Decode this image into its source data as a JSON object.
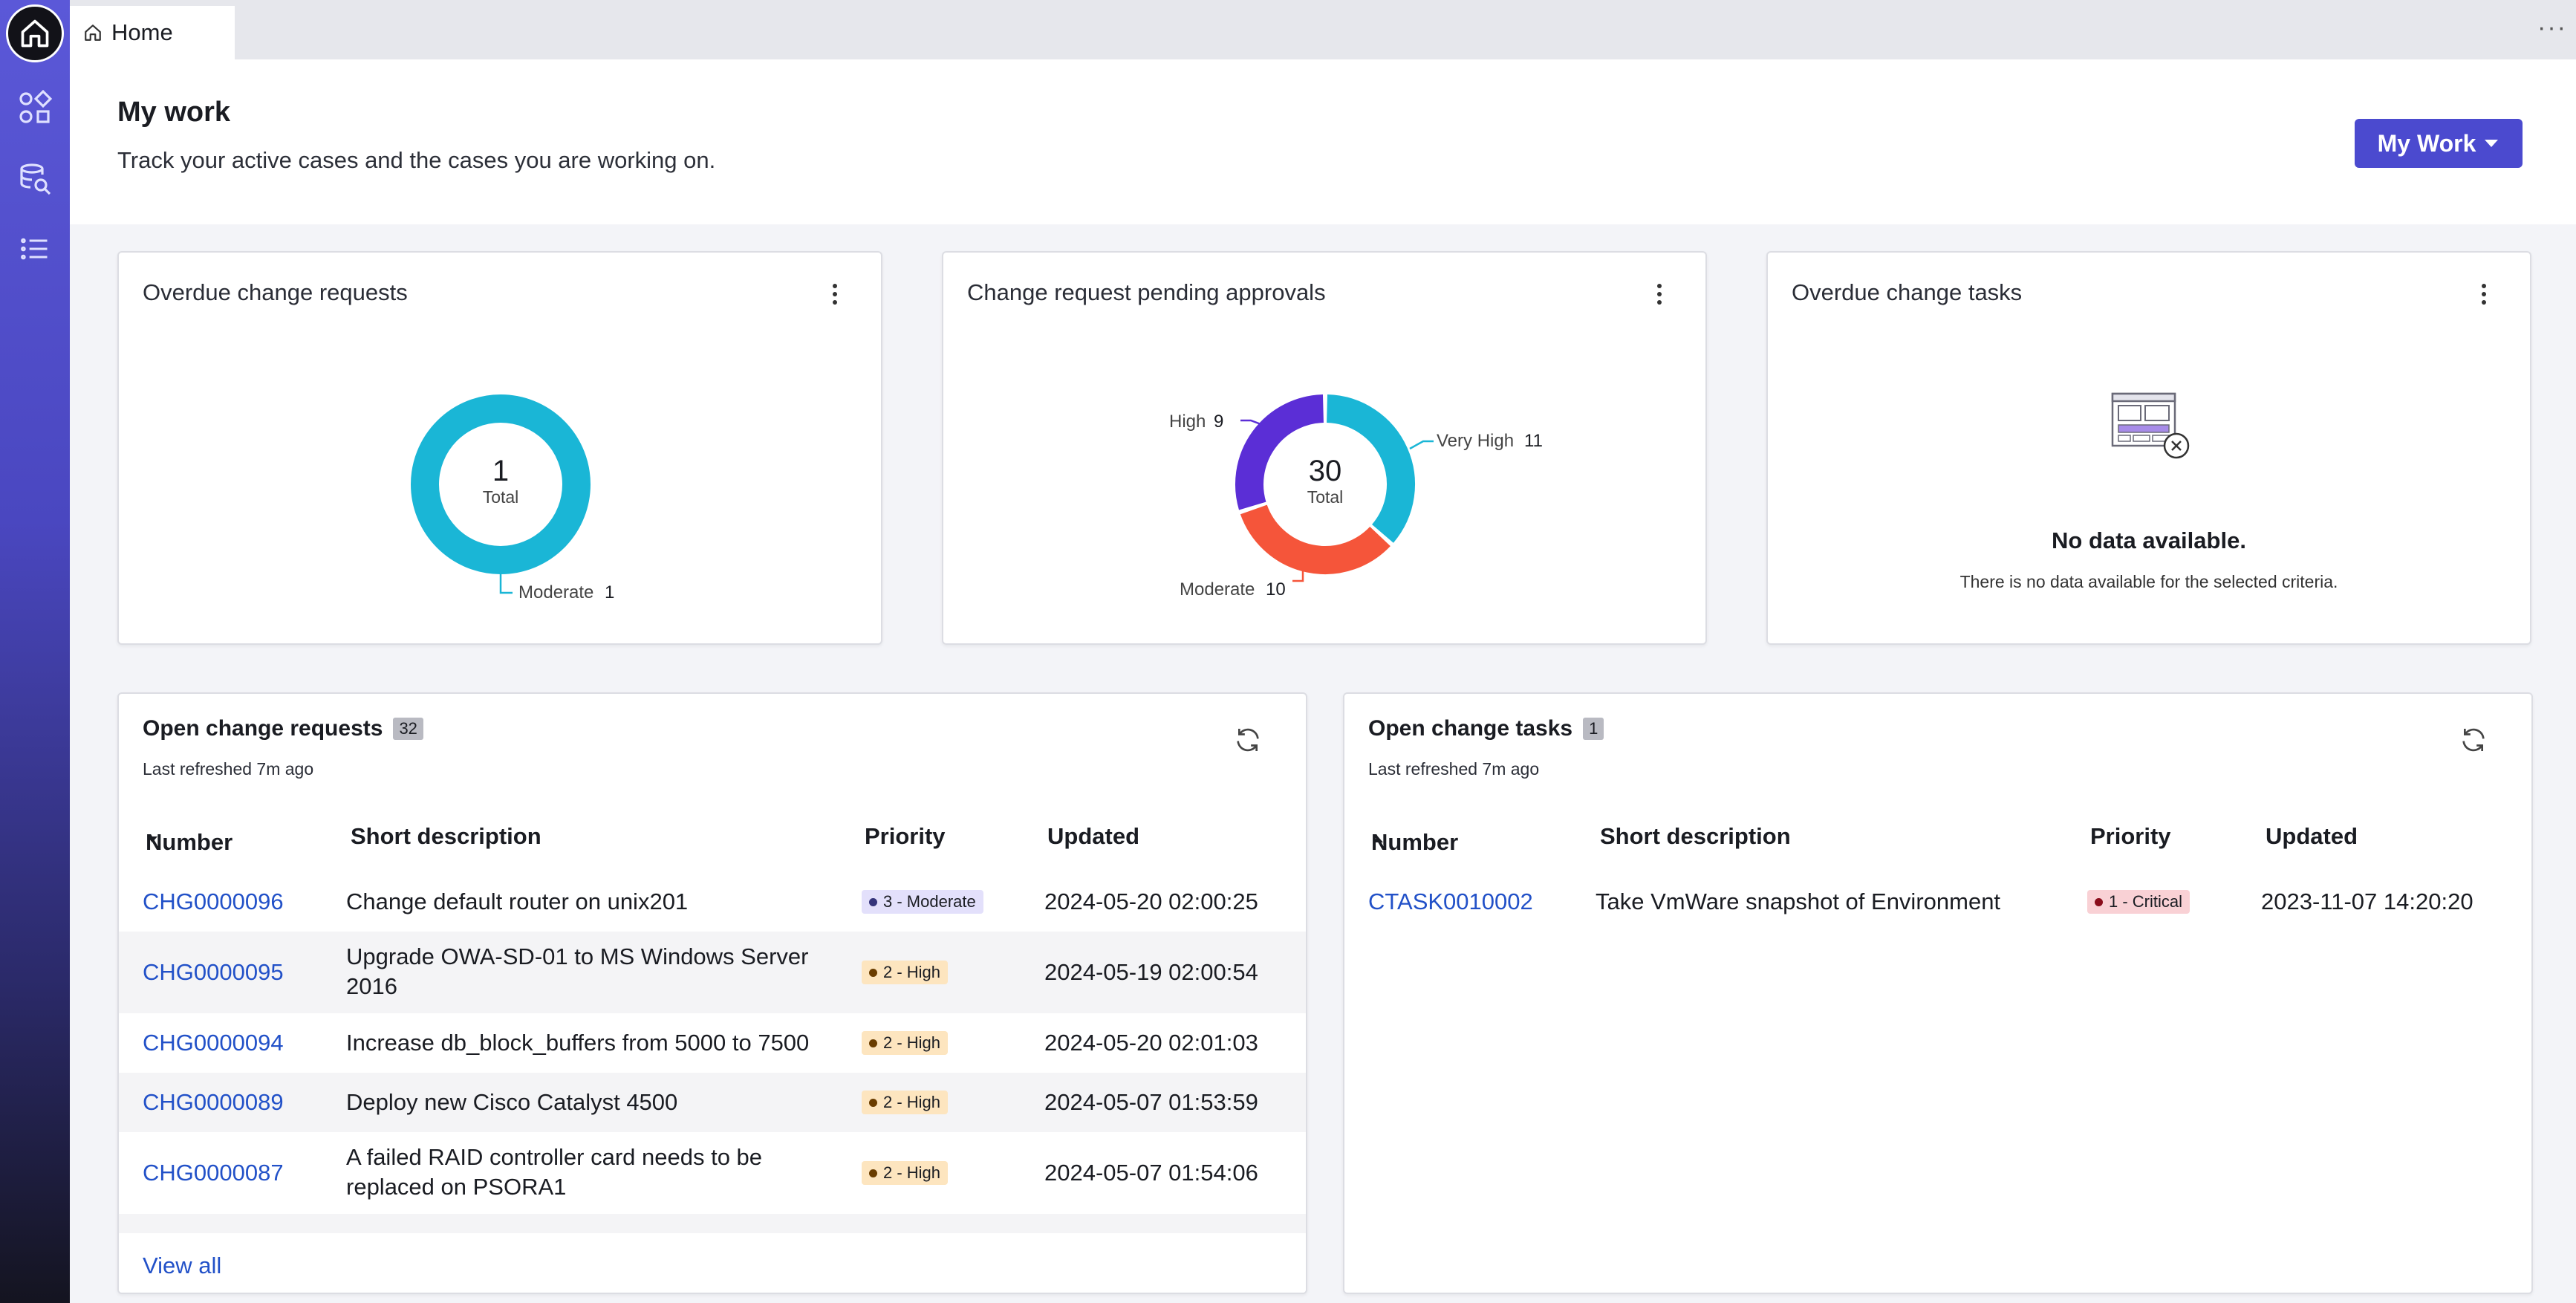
{
  "tab": {
    "label": "Home",
    "more": "···"
  },
  "header": {
    "title": "My work",
    "subtitle": "Track your active cases and the cases you are working on.",
    "button_label": "My Work"
  },
  "widgets": {
    "overdue_requests": {
      "title": "Overdue change requests",
      "total": "1",
      "total_label": "Total",
      "legend_label": "Moderate",
      "legend_value": "1",
      "color": "#1ab6d6"
    },
    "pending_approvals": {
      "title": "Change request pending approvals",
      "total": "30",
      "total_label": "Total",
      "high_label": "High",
      "high_value": "9",
      "veryhigh_label": "Very High",
      "veryhigh_value": "11",
      "moderate_label": "Moderate",
      "moderate_value": "10"
    },
    "overdue_tasks": {
      "title": "Overdue change tasks",
      "nodata_title": "No data available.",
      "nodata_sub": "There is no data available for the selected criteria."
    }
  },
  "chart_data": [
    {
      "type": "pie",
      "categories": [
        "Moderate"
      ],
      "values": [
        1
      ],
      "title": "Overdue change requests"
    },
    {
      "type": "pie",
      "categories": [
        "Very High",
        "Moderate",
        "High"
      ],
      "values": [
        11,
        10,
        9
      ],
      "title": "Change request pending approvals"
    }
  ],
  "open_requests": {
    "title": "Open change requests",
    "count": "32",
    "refreshed": "Last refreshed 7m ago",
    "columns": [
      "Number",
      "Short description",
      "Priority",
      "Updated"
    ],
    "rows": [
      {
        "number": "CHG0000096",
        "desc": "Change default router on unix201",
        "priority": "3 - Moderate",
        "updated": "2024-05-20 02:00:25"
      },
      {
        "number": "CHG0000095",
        "desc1": "Upgrade OWA-SD-01 to MS Windows Server",
        "desc2": "2016",
        "priority": "2 - High",
        "updated": "2024-05-19 02:00:54"
      },
      {
        "number": "CHG0000094",
        "desc": "Increase db_block_buffers from 5000 to 7500",
        "priority": "2 - High",
        "updated": "2024-05-20 02:01:03"
      },
      {
        "number": "CHG0000089",
        "desc": "Deploy new Cisco Catalyst 4500",
        "priority": "2 - High",
        "updated": "2024-05-07 01:53:59"
      },
      {
        "number": "CHG0000087",
        "desc1": "A failed RAID controller card needs to be",
        "desc2": "replaced on PSORA1",
        "priority": "2 - High",
        "updated": "2024-05-07 01:54:06"
      }
    ],
    "view_all": "View all"
  },
  "open_tasks": {
    "title": "Open change tasks",
    "count": "1",
    "refreshed": "Last refreshed 7m ago",
    "columns": [
      "Number",
      "Short description",
      "Priority",
      "Updated"
    ],
    "rows": [
      {
        "number": "CTASK0010002",
        "desc": "Take VmWare snapshot of Environment",
        "priority": "1 - Critical",
        "updated": "2023-11-07 14:20:20"
      }
    ]
  }
}
